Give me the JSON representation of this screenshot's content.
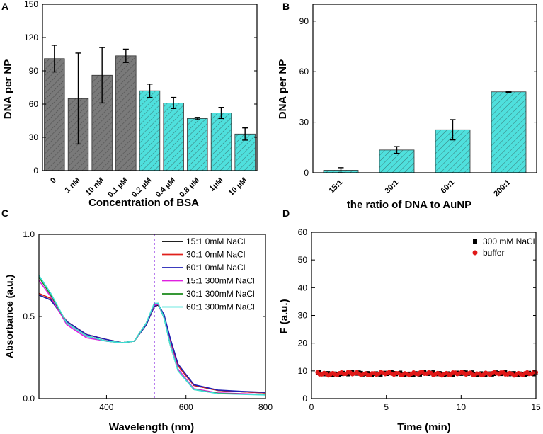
{
  "colors": {
    "gray_bar": "#7a7a7a",
    "cyan_bar": "#4fe0dd",
    "hatch": "#2a2a2a",
    "marker_line": "#8a2be2"
  },
  "chart_data": [
    {
      "id": "A",
      "type": "bar",
      "panel_label": "A",
      "categories": [
        "0",
        "1 nM",
        "10 nM",
        "0.1 μM",
        "0.2 μM",
        "0.4 μM",
        "0.8 μM",
        "1μM",
        "10 μM"
      ],
      "values": [
        101,
        65,
        86,
        103.5,
        72,
        61,
        47,
        52,
        33
      ],
      "errors": [
        12,
        41,
        25,
        6,
        6,
        5,
        1,
        5,
        5.5
      ],
      "bar_colors": [
        "gray",
        "gray",
        "gray",
        "gray",
        "cyan",
        "cyan",
        "cyan",
        "cyan",
        "cyan"
      ],
      "hatched": true,
      "xlabel": "Concentration of BSA",
      "ylabel": "DNA per NP",
      "ylim": [
        0,
        150
      ],
      "yticks": [
        "0",
        "30",
        "60",
        "90",
        "120",
        "150"
      ]
    },
    {
      "id": "B",
      "type": "bar",
      "panel_label": "B",
      "categories": [
        "15:1",
        "30:1",
        "60:1",
        "200:1"
      ],
      "values": [
        1.5,
        13.5,
        25.5,
        48
      ],
      "errors": [
        1.5,
        2,
        6,
        0.3
      ],
      "bar_colors": [
        "cyan",
        "cyan",
        "cyan",
        "cyan"
      ],
      "hatched": true,
      "xlabel": "the ratio of DNA to AuNP",
      "ylabel": "DNA per NP",
      "ylim": [
        0,
        100
      ],
      "yticks": [
        "0",
        "30",
        "60",
        "90"
      ]
    },
    {
      "id": "C",
      "type": "line",
      "panel_label": "C",
      "xlabel": "Wavelength (nm)",
      "ylabel": "Absorbance (a.u.)",
      "xlim": [
        230,
        800
      ],
      "ylim": [
        0.0,
        1.0
      ],
      "xticks": [
        "400",
        "600",
        "800"
      ],
      "yticks": [
        "0.0",
        "0.5",
        "1.0"
      ],
      "vline_x": 520,
      "legend_position": "top-right",
      "series": [
        {
          "name": "15:1 0mM NaCl",
          "color": "#000000",
          "x": [
            230,
            260,
            300,
            350,
            400,
            440,
            470,
            500,
            520,
            530,
            545,
            560,
            580,
            620,
            680,
            740,
            800
          ],
          "y": [
            0.63,
            0.6,
            0.47,
            0.39,
            0.36,
            0.34,
            0.35,
            0.45,
            0.56,
            0.57,
            0.5,
            0.36,
            0.2,
            0.08,
            0.05,
            0.042,
            0.035
          ]
        },
        {
          "name": "30:1 0mM NaCl",
          "color": "#e0201b",
          "x": [
            230,
            260,
            300,
            350,
            400,
            440,
            470,
            500,
            520,
            530,
            545,
            560,
            580,
            620,
            680,
            740,
            800
          ],
          "y": [
            0.64,
            0.61,
            0.47,
            0.39,
            0.36,
            0.34,
            0.35,
            0.45,
            0.56,
            0.575,
            0.5,
            0.36,
            0.2,
            0.08,
            0.05,
            0.042,
            0.035
          ]
        },
        {
          "name": "60:1 0mM NaCl",
          "color": "#1f1fb4",
          "x": [
            230,
            260,
            300,
            350,
            400,
            440,
            470,
            500,
            520,
            530,
            545,
            560,
            580,
            620,
            680,
            740,
            800
          ],
          "y": [
            0.63,
            0.6,
            0.47,
            0.39,
            0.36,
            0.34,
            0.35,
            0.45,
            0.56,
            0.575,
            0.51,
            0.37,
            0.21,
            0.085,
            0.052,
            0.044,
            0.038
          ]
        },
        {
          "name": "15:1 300mM NaCl",
          "color": "#e020e0",
          "x": [
            230,
            260,
            300,
            350,
            400,
            440,
            470,
            500,
            520,
            530,
            545,
            560,
            580,
            620,
            680,
            740,
            800
          ],
          "y": [
            0.72,
            0.62,
            0.45,
            0.37,
            0.35,
            0.34,
            0.35,
            0.46,
            0.57,
            0.575,
            0.49,
            0.34,
            0.18,
            0.06,
            0.035,
            0.03,
            0.025
          ]
        },
        {
          "name": "30:1 300mM NaCl",
          "color": "#1a8a1a",
          "x": [
            230,
            260,
            300,
            350,
            400,
            440,
            470,
            500,
            520,
            530,
            545,
            560,
            580,
            620,
            680,
            740,
            800
          ],
          "y": [
            0.74,
            0.63,
            0.46,
            0.38,
            0.35,
            0.34,
            0.35,
            0.46,
            0.575,
            0.58,
            0.49,
            0.33,
            0.17,
            0.055,
            0.032,
            0.027,
            0.024
          ]
        },
        {
          "name": "60:1 300mM NaCl",
          "color": "#3fe0d8",
          "x": [
            230,
            260,
            300,
            350,
            400,
            440,
            470,
            500,
            520,
            530,
            545,
            560,
            580,
            620,
            680,
            740,
            800
          ],
          "y": [
            0.75,
            0.64,
            0.46,
            0.38,
            0.35,
            0.34,
            0.35,
            0.46,
            0.58,
            0.58,
            0.49,
            0.33,
            0.17,
            0.055,
            0.03,
            0.026,
            0.022
          ]
        }
      ]
    },
    {
      "id": "D",
      "type": "scatter",
      "panel_label": "D",
      "xlabel": "Time (min)",
      "ylabel": "F (a.u.)",
      "xlim": [
        0,
        15
      ],
      "ylim": [
        0,
        60
      ],
      "xticks": [
        "0",
        "5",
        "10",
        "15"
      ],
      "yticks": [
        "0",
        "10",
        "20",
        "30",
        "40",
        "50",
        "60"
      ],
      "legend_position": "top-right",
      "series": [
        {
          "name": "300 mM NaCl",
          "color": "#000000",
          "marker": "square",
          "x_range": [
            0.4,
            15
          ],
          "level": 9.0
        },
        {
          "name": "buffer",
          "color": "#e01818",
          "marker": "circle",
          "x_range": [
            0.4,
            15
          ],
          "level": 9.0
        }
      ]
    }
  ]
}
